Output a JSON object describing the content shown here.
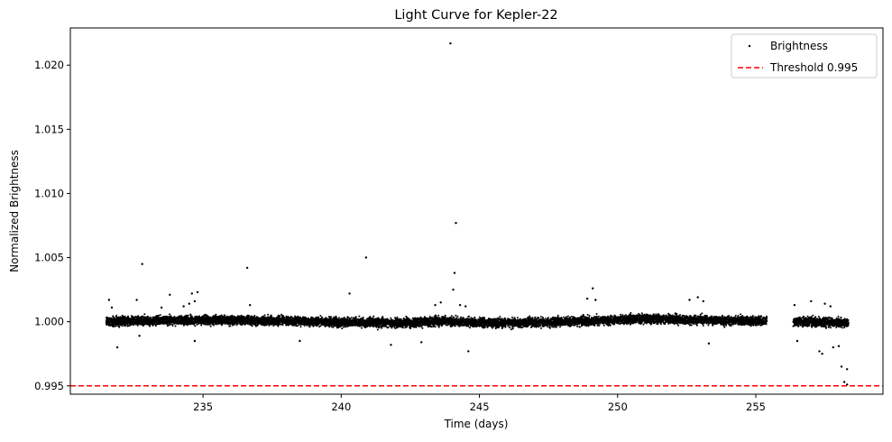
{
  "chart_data": {
    "type": "scatter",
    "title": "Light Curve for Kepler-22",
    "xlabel": "Time (days)",
    "ylabel": "Normalized Brightness",
    "xlim": [
      230.2,
      259.6
    ],
    "ylim": [
      0.99435,
      1.0229
    ],
    "xticks": [
      235,
      240,
      245,
      250,
      255
    ],
    "xtick_labels": [
      "235",
      "240",
      "245",
      "250",
      "255"
    ],
    "yticks": [
      0.995,
      1.0,
      1.005,
      1.01,
      1.015,
      1.02
    ],
    "ytick_labels": [
      "0.995",
      "1.000",
      "1.005",
      "1.010",
      "1.015",
      "1.020"
    ],
    "grid": false,
    "legend_position": "top-right",
    "series": [
      {
        "name": "Brightness",
        "kind": "points",
        "color": "#000000",
        "segments": [
          {
            "x_start": 231.5,
            "x_end": 255.4,
            "center": 1.0,
            "band_halfwidth": 0.0006
          },
          {
            "x_start": 256.35,
            "x_end": 258.35,
            "center": 1.0,
            "band_halfwidth": 0.0006
          }
        ],
        "outliers": [
          {
            "x": 231.6,
            "y": 1.0017
          },
          {
            "x": 231.7,
            "y": 1.0011
          },
          {
            "x": 231.9,
            "y": 0.998
          },
          {
            "x": 232.6,
            "y": 1.0017
          },
          {
            "x": 232.8,
            "y": 1.0045
          },
          {
            "x": 232.7,
            "y": 0.9989
          },
          {
            "x": 233.5,
            "y": 1.0011
          },
          {
            "x": 233.8,
            "y": 1.0021
          },
          {
            "x": 234.3,
            "y": 1.0012
          },
          {
            "x": 234.5,
            "y": 1.0014
          },
          {
            "x": 234.6,
            "y": 1.0022
          },
          {
            "x": 234.7,
            "y": 1.0016
          },
          {
            "x": 234.8,
            "y": 1.0023
          },
          {
            "x": 234.7,
            "y": 0.9985
          },
          {
            "x": 236.6,
            "y": 1.0042
          },
          {
            "x": 236.7,
            "y": 1.0013
          },
          {
            "x": 238.5,
            "y": 0.9985
          },
          {
            "x": 240.3,
            "y": 1.0022
          },
          {
            "x": 240.9,
            "y": 1.005
          },
          {
            "x": 241.8,
            "y": 0.9982
          },
          {
            "x": 242.9,
            "y": 0.9984
          },
          {
            "x": 243.4,
            "y": 1.0013
          },
          {
            "x": 243.6,
            "y": 1.0015
          },
          {
            "x": 243.95,
            "y": 1.0217
          },
          {
            "x": 244.05,
            "y": 1.0025
          },
          {
            "x": 244.1,
            "y": 1.0038
          },
          {
            "x": 244.15,
            "y": 1.0077
          },
          {
            "x": 244.3,
            "y": 1.0013
          },
          {
            "x": 244.5,
            "y": 1.0012
          },
          {
            "x": 244.6,
            "y": 0.9977
          },
          {
            "x": 248.9,
            "y": 1.0018
          },
          {
            "x": 249.1,
            "y": 1.0026
          },
          {
            "x": 249.2,
            "y": 1.0017
          },
          {
            "x": 252.6,
            "y": 1.0017
          },
          {
            "x": 252.9,
            "y": 1.0019
          },
          {
            "x": 253.1,
            "y": 1.0016
          },
          {
            "x": 253.3,
            "y": 0.9983
          },
          {
            "x": 256.4,
            "y": 1.0013
          },
          {
            "x": 256.5,
            "y": 0.9985
          },
          {
            "x": 257.0,
            "y": 1.0016
          },
          {
            "x": 257.3,
            "y": 0.9977
          },
          {
            "x": 257.4,
            "y": 0.9975
          },
          {
            "x": 257.5,
            "y": 1.0014
          },
          {
            "x": 257.7,
            "y": 1.0012
          },
          {
            "x": 257.8,
            "y": 0.998
          },
          {
            "x": 258.0,
            "y": 0.9981
          },
          {
            "x": 258.1,
            "y": 0.9965
          },
          {
            "x": 258.2,
            "y": 0.9953
          },
          {
            "x": 258.3,
            "y": 0.9963
          },
          {
            "x": 258.3,
            "y": 0.9951
          }
        ]
      },
      {
        "name": "Threshold 0.995",
        "kind": "hline",
        "y": 0.995,
        "color": "#ff0000",
        "linestyle": "dashed"
      }
    ]
  }
}
